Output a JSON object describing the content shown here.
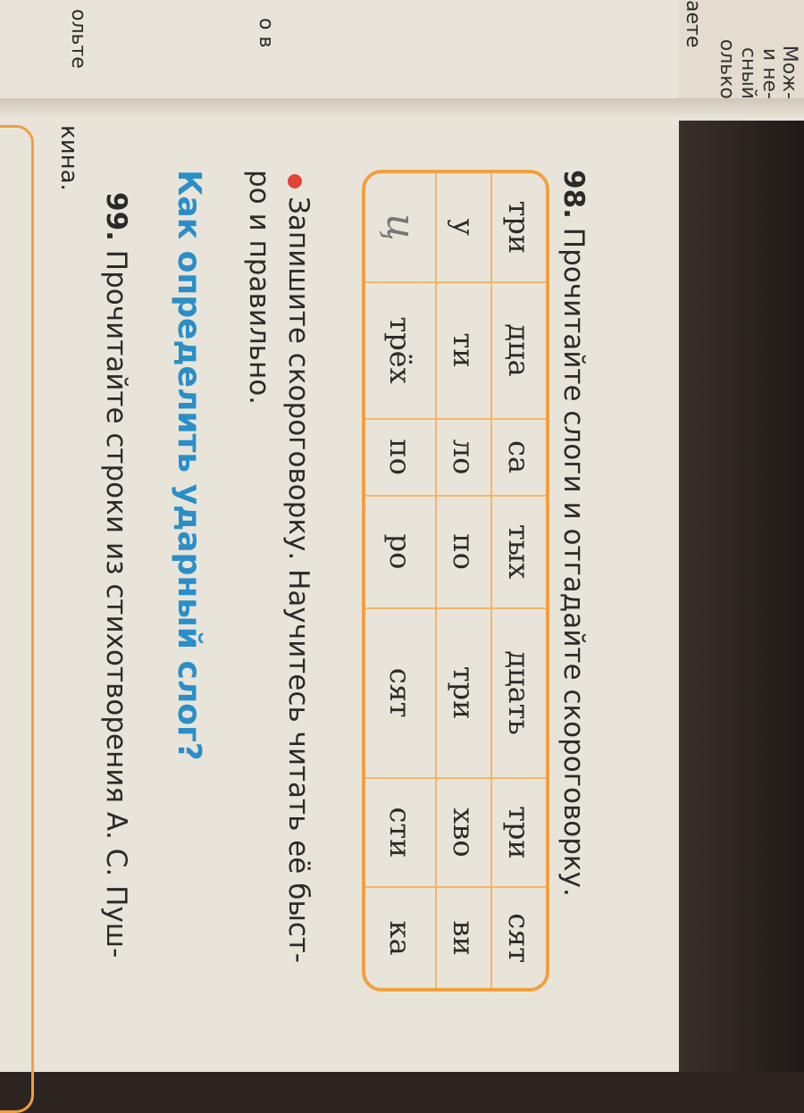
{
  "previous_page_fragments": [
    "Мож-",
    "и не-",
    "сный",
    "олько",
    "аете",
    "о в",
    "ольте"
  ],
  "exercise_98": {
    "number": "98.",
    "text": "Прочитайте слоги и отгадайте скороговорку.",
    "table": [
      [
        "три",
        "дца",
        "са",
        "тых",
        "дцать",
        "три",
        "сят"
      ],
      [
        "у",
        "ти",
        "ло",
        "по",
        "три",
        "хво",
        "ви"
      ],
      [
        "",
        "трёх",
        "по",
        "ро",
        "сят",
        "сти",
        "ка"
      ]
    ],
    "handwritten_mark": "ц",
    "task_line1": "Запишите скороговорку. Научитесь читать её быст-",
    "task_line2": "ро и правильно."
  },
  "section_heading": "Как определить ударный слог?",
  "exercise_99": {
    "number": "99.",
    "line1": "Прочитайте строки из стихотворения А. С. Пуш-",
    "line2": "кина."
  },
  "colors": {
    "accent_orange": "#f0a040",
    "heading_blue": "#2a8fc8",
    "bullet_red": "#e2443a"
  }
}
